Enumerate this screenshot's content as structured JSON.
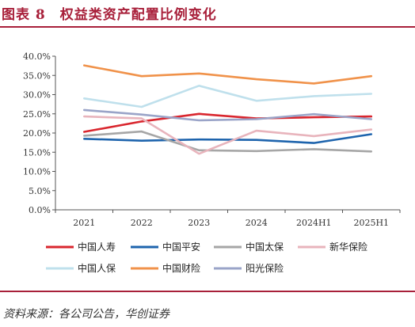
{
  "page": {
    "title": "图表 8　权益类资产配置比例变化",
    "source": "资料来源：各公司公告，华创证券"
  },
  "chart_data": {
    "type": "line",
    "title": "图表 8　权益类资产配置比例变化",
    "xlabel": "",
    "ylabel": "",
    "categories": [
      "2021",
      "2022",
      "2023",
      "2024",
      "2024H1",
      "2025H1"
    ],
    "ylim": [
      0,
      40
    ],
    "yticks": [
      0,
      5,
      10,
      15,
      20,
      25,
      30,
      35,
      40
    ],
    "ytick_labels": [
      "0.0%",
      "5.0%",
      "10.0%",
      "15.0%",
      "20.0%",
      "25.0%",
      "30.0%",
      "35.0%",
      "40.0%"
    ],
    "grid": false,
    "legend_position": "bottom",
    "series": [
      {
        "name": "中国人寿",
        "color": "#d9262e",
        "values": [
          20.3,
          23.0,
          25.0,
          23.8,
          24.1,
          24.3
        ]
      },
      {
        "name": "中国平安",
        "color": "#1e64ad",
        "values": [
          18.5,
          18.0,
          18.3,
          18.2,
          17.4,
          19.7
        ]
      },
      {
        "name": "中国太保",
        "color": "#a6a6a6",
        "values": [
          19.3,
          20.4,
          15.5,
          15.3,
          15.8,
          15.2
        ]
      },
      {
        "name": "新华保险",
        "color": "#e8b4bc",
        "values": [
          24.3,
          23.8,
          14.6,
          20.6,
          19.2,
          20.9
        ]
      },
      {
        "name": "中国人保",
        "color": "#bfe0ec",
        "values": [
          29.0,
          26.8,
          32.3,
          28.4,
          29.6,
          30.2
        ]
      },
      {
        "name": "中国财险",
        "color": "#f0924a",
        "values": [
          37.6,
          34.8,
          35.5,
          34.0,
          32.9,
          34.8
        ]
      },
      {
        "name": "阳光保险",
        "color": "#9aa4c8",
        "values": [
          26.0,
          24.8,
          23.3,
          23.6,
          24.9,
          23.6
        ]
      }
    ]
  }
}
